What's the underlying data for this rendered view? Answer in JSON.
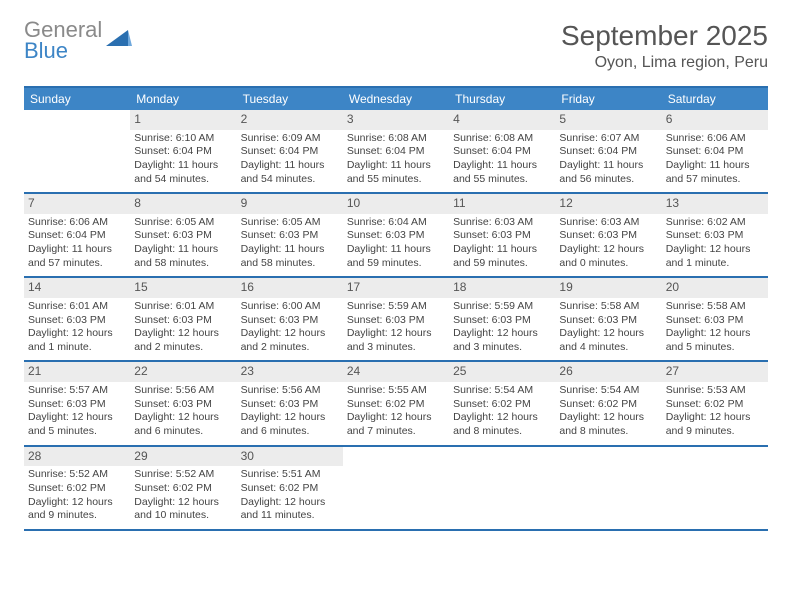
{
  "brand": {
    "line1": "General",
    "line2": "Blue"
  },
  "title": "September 2025",
  "location": "Oyon, Lima region, Peru",
  "colors": {
    "header_bg": "#3d85c6",
    "border": "#2a6fb0",
    "daynum_bg": "#ececec",
    "text": "#444444",
    "logo_gray": "#8a8a8a"
  },
  "dow": [
    "Sunday",
    "Monday",
    "Tuesday",
    "Wednesday",
    "Thursday",
    "Friday",
    "Saturday"
  ],
  "weeks": [
    [
      {
        "n": "",
        "sr": "",
        "ss": "",
        "dl": "",
        "empty": true
      },
      {
        "n": "1",
        "sr": "Sunrise: 6:10 AM",
        "ss": "Sunset: 6:04 PM",
        "dl": "Daylight: 11 hours and 54 minutes."
      },
      {
        "n": "2",
        "sr": "Sunrise: 6:09 AM",
        "ss": "Sunset: 6:04 PM",
        "dl": "Daylight: 11 hours and 54 minutes."
      },
      {
        "n": "3",
        "sr": "Sunrise: 6:08 AM",
        "ss": "Sunset: 6:04 PM",
        "dl": "Daylight: 11 hours and 55 minutes."
      },
      {
        "n": "4",
        "sr": "Sunrise: 6:08 AM",
        "ss": "Sunset: 6:04 PM",
        "dl": "Daylight: 11 hours and 55 minutes."
      },
      {
        "n": "5",
        "sr": "Sunrise: 6:07 AM",
        "ss": "Sunset: 6:04 PM",
        "dl": "Daylight: 11 hours and 56 minutes."
      },
      {
        "n": "6",
        "sr": "Sunrise: 6:06 AM",
        "ss": "Sunset: 6:04 PM",
        "dl": "Daylight: 11 hours and 57 minutes."
      }
    ],
    [
      {
        "n": "7",
        "sr": "Sunrise: 6:06 AM",
        "ss": "Sunset: 6:04 PM",
        "dl": "Daylight: 11 hours and 57 minutes."
      },
      {
        "n": "8",
        "sr": "Sunrise: 6:05 AM",
        "ss": "Sunset: 6:03 PM",
        "dl": "Daylight: 11 hours and 58 minutes."
      },
      {
        "n": "9",
        "sr": "Sunrise: 6:05 AM",
        "ss": "Sunset: 6:03 PM",
        "dl": "Daylight: 11 hours and 58 minutes."
      },
      {
        "n": "10",
        "sr": "Sunrise: 6:04 AM",
        "ss": "Sunset: 6:03 PM",
        "dl": "Daylight: 11 hours and 59 minutes."
      },
      {
        "n": "11",
        "sr": "Sunrise: 6:03 AM",
        "ss": "Sunset: 6:03 PM",
        "dl": "Daylight: 11 hours and 59 minutes."
      },
      {
        "n": "12",
        "sr": "Sunrise: 6:03 AM",
        "ss": "Sunset: 6:03 PM",
        "dl": "Daylight: 12 hours and 0 minutes."
      },
      {
        "n": "13",
        "sr": "Sunrise: 6:02 AM",
        "ss": "Sunset: 6:03 PM",
        "dl": "Daylight: 12 hours and 1 minute."
      }
    ],
    [
      {
        "n": "14",
        "sr": "Sunrise: 6:01 AM",
        "ss": "Sunset: 6:03 PM",
        "dl": "Daylight: 12 hours and 1 minute."
      },
      {
        "n": "15",
        "sr": "Sunrise: 6:01 AM",
        "ss": "Sunset: 6:03 PM",
        "dl": "Daylight: 12 hours and 2 minutes."
      },
      {
        "n": "16",
        "sr": "Sunrise: 6:00 AM",
        "ss": "Sunset: 6:03 PM",
        "dl": "Daylight: 12 hours and 2 minutes."
      },
      {
        "n": "17",
        "sr": "Sunrise: 5:59 AM",
        "ss": "Sunset: 6:03 PM",
        "dl": "Daylight: 12 hours and 3 minutes."
      },
      {
        "n": "18",
        "sr": "Sunrise: 5:59 AM",
        "ss": "Sunset: 6:03 PM",
        "dl": "Daylight: 12 hours and 3 minutes."
      },
      {
        "n": "19",
        "sr": "Sunrise: 5:58 AM",
        "ss": "Sunset: 6:03 PM",
        "dl": "Daylight: 12 hours and 4 minutes."
      },
      {
        "n": "20",
        "sr": "Sunrise: 5:58 AM",
        "ss": "Sunset: 6:03 PM",
        "dl": "Daylight: 12 hours and 5 minutes."
      }
    ],
    [
      {
        "n": "21",
        "sr": "Sunrise: 5:57 AM",
        "ss": "Sunset: 6:03 PM",
        "dl": "Daylight: 12 hours and 5 minutes."
      },
      {
        "n": "22",
        "sr": "Sunrise: 5:56 AM",
        "ss": "Sunset: 6:03 PM",
        "dl": "Daylight: 12 hours and 6 minutes."
      },
      {
        "n": "23",
        "sr": "Sunrise: 5:56 AM",
        "ss": "Sunset: 6:03 PM",
        "dl": "Daylight: 12 hours and 6 minutes."
      },
      {
        "n": "24",
        "sr": "Sunrise: 5:55 AM",
        "ss": "Sunset: 6:02 PM",
        "dl": "Daylight: 12 hours and 7 minutes."
      },
      {
        "n": "25",
        "sr": "Sunrise: 5:54 AM",
        "ss": "Sunset: 6:02 PM",
        "dl": "Daylight: 12 hours and 8 minutes."
      },
      {
        "n": "26",
        "sr": "Sunrise: 5:54 AM",
        "ss": "Sunset: 6:02 PM",
        "dl": "Daylight: 12 hours and 8 minutes."
      },
      {
        "n": "27",
        "sr": "Sunrise: 5:53 AM",
        "ss": "Sunset: 6:02 PM",
        "dl": "Daylight: 12 hours and 9 minutes."
      }
    ],
    [
      {
        "n": "28",
        "sr": "Sunrise: 5:52 AM",
        "ss": "Sunset: 6:02 PM",
        "dl": "Daylight: 12 hours and 9 minutes."
      },
      {
        "n": "29",
        "sr": "Sunrise: 5:52 AM",
        "ss": "Sunset: 6:02 PM",
        "dl": "Daylight: 12 hours and 10 minutes."
      },
      {
        "n": "30",
        "sr": "Sunrise: 5:51 AM",
        "ss": "Sunset: 6:02 PM",
        "dl": "Daylight: 12 hours and 11 minutes."
      },
      {
        "n": "",
        "sr": "",
        "ss": "",
        "dl": "",
        "empty": true
      },
      {
        "n": "",
        "sr": "",
        "ss": "",
        "dl": "",
        "empty": true
      },
      {
        "n": "",
        "sr": "",
        "ss": "",
        "dl": "",
        "empty": true
      },
      {
        "n": "",
        "sr": "",
        "ss": "",
        "dl": "",
        "empty": true
      }
    ]
  ]
}
